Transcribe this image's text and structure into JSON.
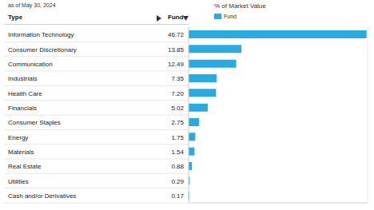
{
  "chart_data": {
    "type": "bar",
    "orientation": "horizontal",
    "subtitle": "as of May 30, 2024",
    "xlabel": "% of Market Value",
    "ylabel": "Type",
    "categories": [
      "Information Technology",
      "Consumer Discretionary",
      "Communication",
      "Industrials",
      "Health Care",
      "Financials",
      "Consumer Staples",
      "Energy",
      "Materials",
      "Real Estate",
      "Utilities",
      "Cash and/or Derivatives"
    ],
    "series": [
      {
        "name": "Fund",
        "color": "#29abe2",
        "values": [
          46.72,
          13.85,
          12.49,
          7.35,
          7.2,
          5.02,
          2.75,
          1.75,
          1.54,
          0.88,
          0.29,
          0.17
        ],
        "value_labels": [
          "46.72",
          "13.85",
          "12.49",
          "7.35",
          "7.20",
          "5.02",
          "2.75",
          "1.75",
          "1.54",
          "0.88",
          "0.29",
          "0.17"
        ]
      }
    ],
    "xlim": [
      0,
      47
    ],
    "xticks": [
      0,
      5,
      10,
      15,
      20,
      25,
      30,
      35,
      40,
      45
    ],
    "grid": true,
    "data_labels": true,
    "tick_labels": false,
    "legend": "top"
  }
}
